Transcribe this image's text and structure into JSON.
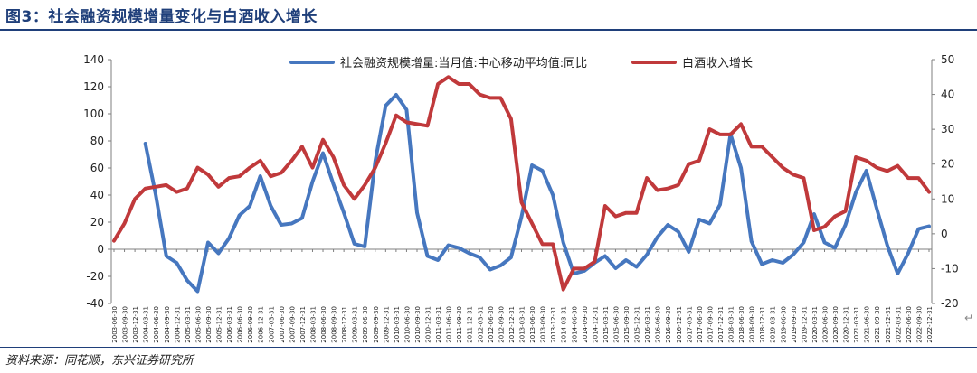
{
  "figure": {
    "title": "图3：社会融资规模增量变化与白酒收入增长",
    "source": "资料来源：同花顺，东兴证券研究所"
  },
  "colors": {
    "blue": "#4677bf",
    "red": "#c0393b",
    "axis": "#7f7f7f",
    "text": "#222222"
  },
  "chart_data": {
    "type": "line",
    "grid": false,
    "legend_position": "top",
    "x": [
      "2003-06-30",
      "2003-09-30",
      "2003-12-31",
      "2004-03-31",
      "2004-06-30",
      "2004-09-30",
      "2004-12-31",
      "2005-03-31",
      "2005-06-30",
      "2005-09-30",
      "2005-12-31",
      "2006-03-31",
      "2006-06-30",
      "2006-09-30",
      "2006-12-31",
      "2007-03-31",
      "2007-06-30",
      "2007-09-30",
      "2007-12-31",
      "2008-03-31",
      "2008-06-30",
      "2008-09-30",
      "2008-12-31",
      "2009-03-31",
      "2009-06-30",
      "2009-09-30",
      "2009-12-31",
      "2010-03-31",
      "2010-06-30",
      "2010-09-30",
      "2010-12-31",
      "2011-03-31",
      "2011-06-30",
      "2011-09-30",
      "2011-12-31",
      "2012-03-31",
      "2012-06-30",
      "2012-09-30",
      "2012-12-31",
      "2013-03-31",
      "2013-06-30",
      "2013-09-30",
      "2013-12-31",
      "2014-03-31",
      "2014-06-30",
      "2014-09-30",
      "2014-12-31",
      "2015-03-31",
      "2015-06-30",
      "2015-09-30",
      "2015-12-31",
      "2016-03-31",
      "2016-06-30",
      "2016-09-30",
      "2016-12-31",
      "2017-03-31",
      "2017-06-30",
      "2017-09-30",
      "2017-12-31",
      "2018-03-31",
      "2018-06-30",
      "2018-09-30",
      "2018-12-31",
      "2019-03-31",
      "2019-06-30",
      "2019-09-30",
      "2019-12-31",
      "2020-03-31",
      "2020-06-30",
      "2020-09-30",
      "2020-12-31",
      "2021-03-31",
      "2021-06-30",
      "2021-09-30",
      "2021-12-31",
      "2022-03-31",
      "2022-06-30",
      "2022-09-30",
      "2022-12-31"
    ],
    "left_axis": {
      "ylim": [
        -40,
        140
      ],
      "ticks": [
        -40,
        -20,
        0,
        20,
        40,
        60,
        80,
        100,
        120,
        140
      ]
    },
    "right_axis": {
      "ylim": [
        -20,
        50
      ],
      "ticks": [
        -20,
        -10,
        0,
        10,
        20,
        30,
        40,
        50
      ]
    },
    "series": [
      {
        "name": "社会融资规模增量:当月值:中心移动平均值:同比",
        "axis": "left",
        "color": "#4677bf",
        "values": [
          null,
          null,
          null,
          78,
          40,
          -5,
          -10,
          -23,
          -31,
          5,
          -3,
          8,
          25,
          32,
          54,
          32,
          18,
          19,
          23,
          50,
          71,
          48,
          27,
          4,
          2,
          65,
          106,
          114,
          103,
          27,
          -5,
          -8,
          3,
          1,
          -3,
          -6,
          -15,
          -12,
          -6,
          24,
          62,
          58,
          40,
          5,
          -18,
          -16,
          -10,
          -5,
          -14,
          -8,
          -13,
          -4,
          9,
          18,
          13,
          -2,
          22,
          19,
          33,
          85,
          60,
          6,
          -11,
          -8,
          -10,
          -4,
          5,
          26,
          5,
          1,
          18,
          42,
          58,
          30,
          3,
          -18,
          -3,
          15,
          17
        ]
      },
      {
        "name": "白酒收入增长",
        "axis": "right",
        "color": "#c0393b",
        "values": [
          -2,
          3,
          10,
          13,
          13.5,
          14,
          12,
          13,
          19,
          17,
          13.5,
          16,
          16.5,
          19,
          21,
          16.5,
          17.5,
          21,
          25,
          19,
          27,
          22,
          14,
          10,
          14,
          19,
          26,
          34,
          32,
          31.5,
          31,
          43,
          45,
          43,
          43,
          40,
          39,
          39,
          33,
          9,
          3,
          -3,
          -3,
          -16,
          -10,
          -10,
          -8,
          8,
          5,
          6,
          6,
          16,
          12.5,
          13,
          14,
          20,
          21,
          30,
          28.5,
          28.5,
          31.5,
          25,
          25,
          22,
          19,
          17,
          16,
          1,
          2,
          5,
          6.5,
          22,
          21,
          19,
          18,
          19.5,
          16,
          16,
          12
        ]
      }
    ]
  }
}
